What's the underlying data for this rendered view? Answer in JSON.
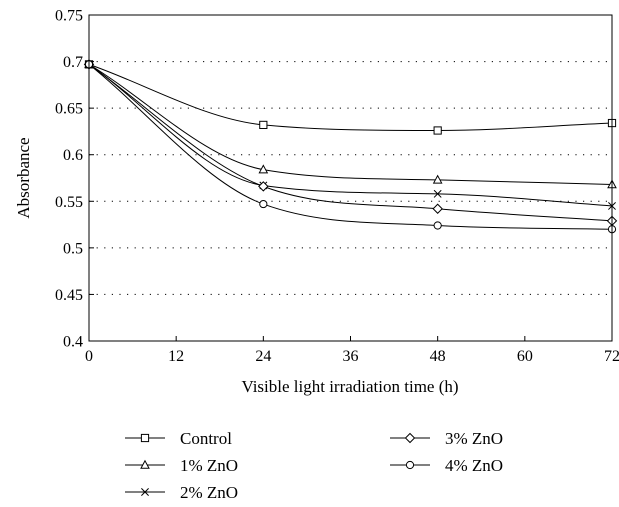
{
  "chart_data": {
    "type": "line",
    "xlabel": "Visible light irradiation time (h)",
    "ylabel": "Absorbance",
    "xlim": [
      0,
      72
    ],
    "ylim": [
      0.4,
      0.75
    ],
    "x_ticks": [
      "0",
      "12",
      "24",
      "36",
      "48",
      "60",
      "72"
    ],
    "y_ticks": [
      "0.4",
      "0.45",
      "0.5",
      "0.55",
      "0.6",
      "0.65",
      "0.7",
      "0.75"
    ],
    "grid": "horizontal dotted",
    "legend_position": "below",
    "x": [
      0,
      24,
      48,
      72
    ],
    "series": [
      {
        "name": "Control",
        "marker": "square",
        "values": [
          0.697,
          0.632,
          0.626,
          0.634
        ]
      },
      {
        "name": "1% ZnO",
        "marker": "triangle",
        "values": [
          0.697,
          0.584,
          0.573,
          0.568
        ]
      },
      {
        "name": "2% ZnO",
        "marker": "x",
        "values": [
          0.697,
          0.567,
          0.558,
          0.545
        ]
      },
      {
        "name": "3% ZnO",
        "marker": "diamond",
        "values": [
          0.697,
          0.566,
          0.542,
          0.529
        ]
      },
      {
        "name": "4% ZnO",
        "marker": "circle",
        "values": [
          0.697,
          0.547,
          0.524,
          0.52
        ]
      }
    ]
  }
}
